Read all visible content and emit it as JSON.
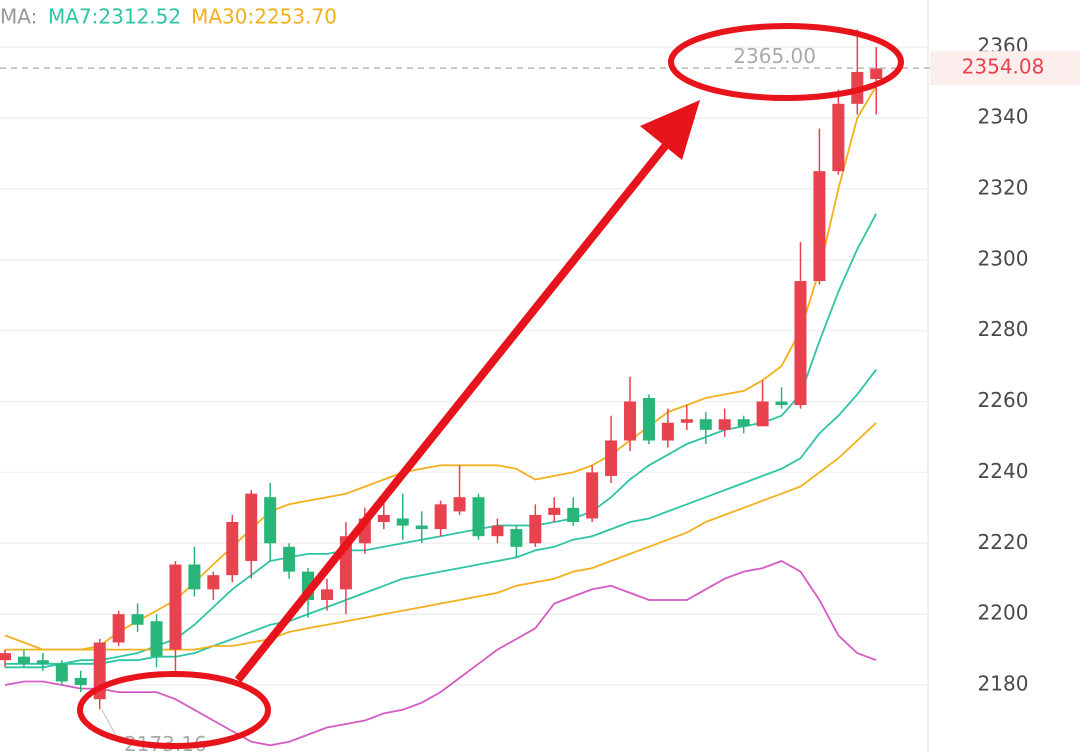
{
  "chart_data": {
    "type": "candlestick",
    "legend_label": "MA:",
    "ylim": [
      2161.1,
      2373.3
    ],
    "yticks": [
      2180,
      2200,
      2220,
      2240,
      2260,
      2280,
      2300,
      2320,
      2340,
      2360
    ],
    "grid": true,
    "up_color": "#e8424f",
    "down_color": "#27b57a",
    "current_price": 2354.08,
    "high_label": {
      "value": 2365,
      "label": "2365.00"
    },
    "low_label": 2173.16,
    "open": [
      2187,
      2188,
      2187,
      2186,
      2182,
      2176,
      2192,
      2200,
      2198,
      2190,
      2214,
      2207,
      2211,
      2215,
      2233,
      2219,
      2212,
      2204,
      2207,
      2220,
      2226,
      2227,
      2225,
      2224,
      2229,
      2233,
      2222,
      2224,
      2220,
      2228,
      2230,
      2227,
      2239,
      2249,
      2261,
      2249,
      2254,
      2255,
      2252,
      2255,
      2253,
      2260,
      2259,
      2294,
      2325,
      2344,
      2351
    ],
    "high": [
      2190,
      2190,
      2189,
      2187,
      2184,
      2193,
      2201,
      2203,
      2200,
      2215,
      2219,
      2212,
      2228,
      2235,
      2237,
      2220,
      2213,
      2210,
      2226,
      2230,
      2232,
      2234,
      2229,
      2232,
      2242,
      2234,
      2227,
      2225,
      2231,
      2233,
      2233,
      2242,
      2256,
      2267,
      2262,
      2258,
      2259,
      2257,
      2258,
      2256,
      2266,
      2264,
      2305,
      2337,
      2348,
      2365,
      2360
    ],
    "low": [
      2185,
      2185,
      2184,
      2180,
      2178,
      2173.16,
      2191,
      2195,
      2185,
      2184,
      2205,
      2204,
      2209,
      2210,
      2215,
      2210,
      2199,
      2201,
      2200,
      2217,
      2224,
      2221,
      2220,
      2222,
      2228,
      2221,
      2220,
      2216,
      2219,
      2226,
      2225,
      2226,
      2237,
      2246,
      2248,
      2247,
      2252,
      2248,
      2250,
      2251,
      2253,
      2258,
      2258,
      2293,
      2324,
      2341,
      2341
    ],
    "close": [
      2189,
      2186,
      2186,
      2181,
      2180,
      2192,
      2200,
      2197,
      2188,
      2214,
      2207,
      2211,
      2226,
      2234,
      2220,
      2212,
      2204,
      2207,
      2222,
      2227,
      2228,
      2225,
      2224,
      2231,
      2233,
      2222,
      2225,
      2219,
      2228,
      2230,
      2226,
      2240,
      2249,
      2260,
      2249,
      2254,
      2255,
      2252,
      2255,
      2253,
      2260,
      2259,
      2294,
      2325,
      2344,
      2353,
      2354
    ],
    "series": [
      {
        "color": "#f2b01e",
        "values": [
          2194,
          2192,
          2190,
          2190,
          2190,
          2191,
          2195,
          2198,
          2201,
          2204,
          2209,
          2214,
          2219,
          2224,
          2229,
          2231,
          2232,
          2233,
          2234,
          2236,
          2238,
          2240,
          2241,
          2242,
          2242,
          2242,
          2242,
          2241,
          2238,
          2239,
          2240,
          2242,
          2245,
          2249,
          2253,
          2257,
          2259,
          2261,
          2262,
          2263,
          2266,
          2270,
          2280,
          2297,
          2320,
          2340,
          2349
        ]
      },
      {
        "name": "MA7:2312.52",
        "color": "#2ec4a6",
        "values": [
          2186,
          2186,
          2186,
          2186,
          2187,
          2187,
          2188,
          2189,
          2191,
          2193,
          2197,
          2202,
          2207,
          2211,
          2215,
          2216,
          2217,
          2217,
          2218,
          2218,
          2219,
          2220,
          2221,
          2222,
          2223,
          2224,
          2225,
          2225,
          2225,
          2226,
          2227,
          2229,
          2233,
          2238,
          2242,
          2245,
          2248,
          2250,
          2252,
          2253,
          2254,
          2256,
          2262,
          2277,
          2291,
          2303,
          2313
        ]
      },
      {
        "color": "#2ec4a6",
        "values": [
          2185,
          2185,
          2185,
          2186,
          2186,
          2186,
          2187,
          2187,
          2188,
          2188,
          2189,
          2191,
          2193,
          2195,
          2197,
          2198,
          2200,
          2202,
          2204,
          2206,
          2208,
          2210,
          2211,
          2212,
          2213,
          2214,
          2215,
          2216,
          2218,
          2219,
          2221,
          2222,
          2224,
          2226,
          2227,
          2229,
          2231,
          2233,
          2235,
          2237,
          2239,
          2241,
          2244,
          2251,
          2256,
          2262,
          2269
        ]
      },
      {
        "name": "MA30:2253.70",
        "color": "#f2b01e",
        "values": [
          2190,
          2190,
          2190,
          2190,
          2190,
          2190,
          2190,
          2190,
          2190,
          2190,
          2190,
          2191,
          2191,
          2192,
          2193,
          2195,
          2196,
          2197,
          2198,
          2199,
          2200,
          2201,
          2202,
          2203,
          2204,
          2205,
          2206,
          2208,
          2209,
          2210,
          2212,
          2213,
          2215,
          2217,
          2219,
          2221,
          2223,
          2226,
          2228,
          2230,
          2232,
          2234,
          2236,
          2240,
          2244,
          2249,
          2254
        ]
      },
      {
        "color": "#d45bc4",
        "values": [
          2180,
          2181,
          2181,
          2180,
          2179,
          2179,
          2178,
          2178,
          2178,
          2176,
          2173,
          2170,
          2167,
          2164,
          2163,
          2164,
          2166,
          2168,
          2169,
          2170,
          2172,
          2173,
          2175,
          2178,
          2182,
          2186,
          2190,
          2193,
          2196,
          2203,
          2205,
          2207,
          2208,
          2206,
          2204,
          2204,
          2204,
          2207,
          2210,
          2212,
          2213,
          2215,
          2212,
          2204,
          2194,
          2189,
          2187
        ]
      }
    ]
  }
}
